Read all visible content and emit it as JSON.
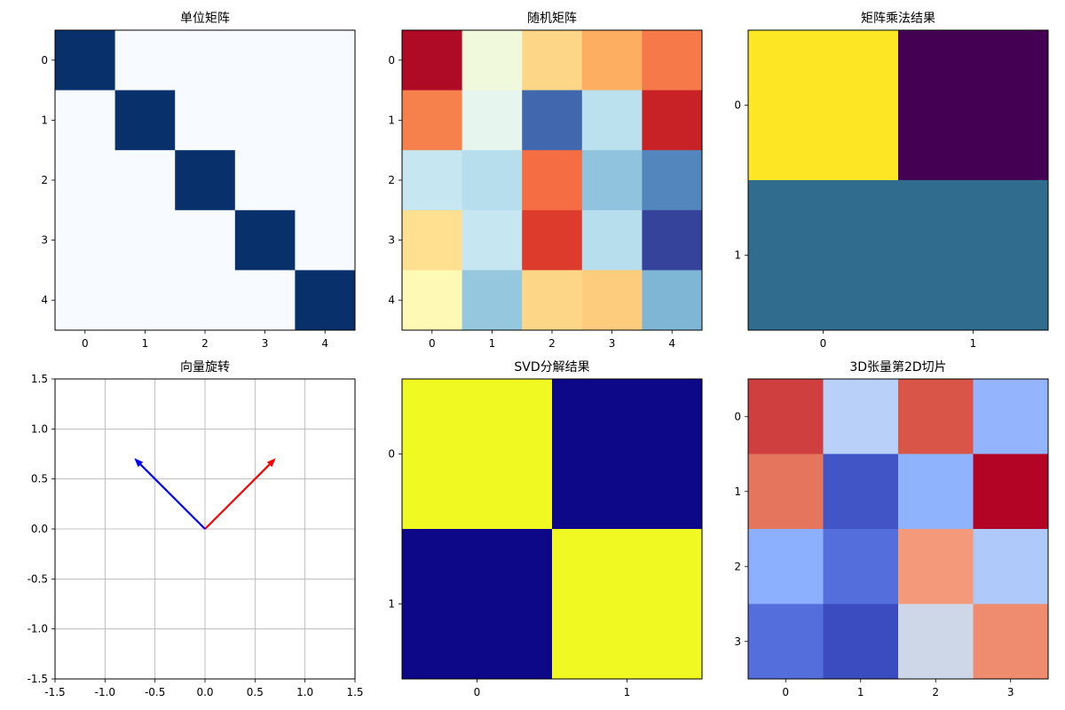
{
  "chart_data": [
    {
      "type": "heatmap",
      "title": "单位矩阵",
      "colormap": "Blues",
      "x_ticks": [
        "0",
        "1",
        "2",
        "3",
        "4"
      ],
      "y_ticks": [
        "0",
        "1",
        "2",
        "3",
        "4"
      ],
      "values": [
        [
          1,
          0,
          0,
          0,
          0
        ],
        [
          0,
          1,
          0,
          0,
          0
        ],
        [
          0,
          0,
          1,
          0,
          0
        ],
        [
          0,
          0,
          0,
          1,
          0
        ],
        [
          0,
          0,
          0,
          0,
          1
        ]
      ]
    },
    {
      "type": "heatmap",
      "title": "随机矩阵",
      "colormap": "RdYlBu_r",
      "x_ticks": [
        "0",
        "1",
        "2",
        "3",
        "4"
      ],
      "y_ticks": [
        "0",
        "1",
        "2",
        "3",
        "4"
      ],
      "values": [
        [
          0.98,
          0.45,
          0.62,
          0.7,
          0.78
        ],
        [
          0.77,
          0.42,
          0.08,
          0.33,
          0.93
        ],
        [
          0.35,
          0.32,
          0.8,
          0.25,
          0.13
        ],
        [
          0.6,
          0.35,
          0.88,
          0.32,
          0.02
        ],
        [
          0.52,
          0.26,
          0.62,
          0.64,
          0.22
        ]
      ]
    },
    {
      "type": "heatmap",
      "title": "矩阵乘法结果",
      "colormap": "viridis",
      "x_ticks": [
        "0",
        "1"
      ],
      "y_ticks": [
        "0",
        "1"
      ],
      "values": [
        [
          1.0,
          0.0
        ],
        [
          0.35,
          0.35
        ]
      ]
    },
    {
      "type": "vector",
      "title": "向量旋转",
      "xlim": [
        -1.5,
        1.5
      ],
      "ylim": [
        -1.5,
        1.5
      ],
      "x_ticks": [
        "-1.5",
        "-1.0",
        "-0.5",
        "0.0",
        "0.5",
        "1.0",
        "1.5"
      ],
      "y_ticks": [
        "-1.5",
        "-1.0",
        "-0.5",
        "0.0",
        "0.5",
        "1.0",
        "1.5"
      ],
      "grid": true,
      "vectors": [
        {
          "x0": 0,
          "y0": 0,
          "x1": 0.707,
          "y1": 0.707,
          "color": "#ff0000"
        },
        {
          "x0": 0,
          "y0": 0,
          "x1": -0.707,
          "y1": 0.707,
          "color": "#0000ff"
        }
      ]
    },
    {
      "type": "heatmap",
      "title": "SVD分解结果",
      "colormap": "plasma",
      "x_ticks": [
        "0",
        "1"
      ],
      "y_ticks": [
        "0",
        "1"
      ],
      "values": [
        [
          1,
          0
        ],
        [
          0,
          1
        ]
      ]
    },
    {
      "type": "heatmap",
      "title": "3D张量第2D切片",
      "colormap": "coolwarm",
      "x_ticks": [
        "0",
        "1",
        "2",
        "3"
      ],
      "y_ticks": [
        "0",
        "1",
        "2",
        "3"
      ],
      "values": [
        [
          0.92,
          0.38,
          0.89,
          0.27
        ],
        [
          0.83,
          0.02,
          0.26,
          1.0
        ],
        [
          0.25,
          0.08,
          0.75,
          0.35
        ],
        [
          0.08,
          0.0,
          0.45,
          0.78
        ]
      ]
    }
  ]
}
